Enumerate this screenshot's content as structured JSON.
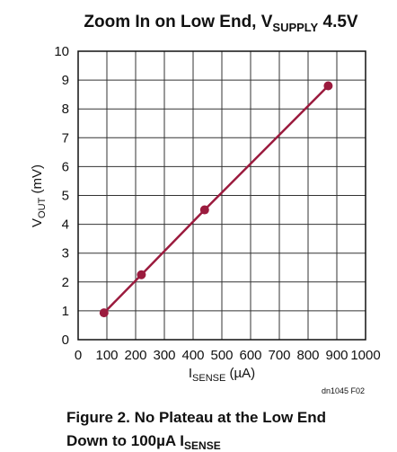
{
  "chart_data": {
    "type": "line",
    "title": [
      "Zoom In on Low End, V",
      "SUPPLY",
      " 4.5V"
    ],
    "y_label": [
      "V",
      "OUT",
      " (mV)"
    ],
    "x_label": [
      "I",
      "SENSE",
      " (µA)"
    ],
    "note": "dn1045 F02",
    "caption": [
      "Figure 2. No Plateau at the Low End",
      "Down to 100µA I",
      "SENSE"
    ],
    "x": [
      90,
      220,
      440,
      870
    ],
    "series": [
      {
        "color": "#9b1b3e",
        "values": [
          0.93,
          2.25,
          4.5,
          8.8
        ]
      }
    ],
    "xlim": [
      0,
      1000
    ],
    "xticks": [
      0,
      100,
      200,
      300,
      400,
      500,
      600,
      700,
      800,
      900,
      1000
    ],
    "ylim": [
      0,
      10
    ],
    "yticks": [
      0,
      1,
      2,
      3,
      4,
      5,
      6,
      7,
      8,
      9,
      10
    ],
    "grid": true
  }
}
